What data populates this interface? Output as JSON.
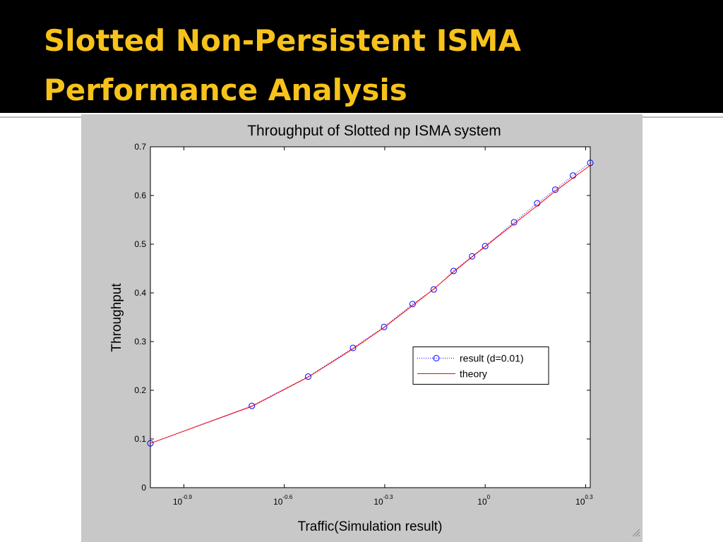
{
  "slide": {
    "title": [
      "Slotted Non-Persistent ISMA",
      "Performance Analysis"
    ]
  },
  "chart_data": {
    "type": "line",
    "title": "Throughput of Slotted np ISMA system",
    "x_label": "Traffic(Simulation result)",
    "y_label": "Throughput",
    "x": [
      0.1,
      0.201,
      0.296,
      0.403,
      0.499,
      0.607,
      0.702,
      0.805,
      0.914,
      1.0,
      1.22,
      1.43,
      1.62,
      1.83,
      2.06
    ],
    "series": [
      {
        "name": "result (d=0.01)",
        "color": "#0000ff",
        "style": "dotted-circle",
        "values": [
          0.091,
          0.168,
          0.228,
          0.287,
          0.33,
          0.377,
          0.407,
          0.445,
          0.475,
          0.496,
          0.545,
          0.584,
          0.612,
          0.641,
          0.667
        ]
      },
      {
        "name": "theory",
        "color": "#ff0000",
        "style": "solid",
        "values": [
          0.091,
          0.167,
          0.227,
          0.285,
          0.329,
          0.374,
          0.408,
          0.443,
          0.474,
          0.495,
          0.542,
          0.579,
          0.609,
          0.636,
          0.662
        ]
      }
    ],
    "xscale": "log",
    "xlim": [
      0.1,
      2.06
    ],
    "xticks": [
      {
        "value": 0.12589,
        "label": "10",
        "exponent": "-0.9"
      },
      {
        "value": 0.25119,
        "label": "10",
        "exponent": "-0.6"
      },
      {
        "value": 0.50119,
        "label": "10",
        "exponent": "-0.3"
      },
      {
        "value": 1,
        "label": "10",
        "exponent": "0"
      },
      {
        "value": 1.99526,
        "label": "10",
        "exponent": "0.3"
      }
    ],
    "ylim": [
      0,
      0.7
    ],
    "yticks": [
      0,
      0.1,
      0.2,
      0.3,
      0.4,
      0.5,
      0.6,
      0.7
    ],
    "grid": false,
    "legend": "east"
  }
}
